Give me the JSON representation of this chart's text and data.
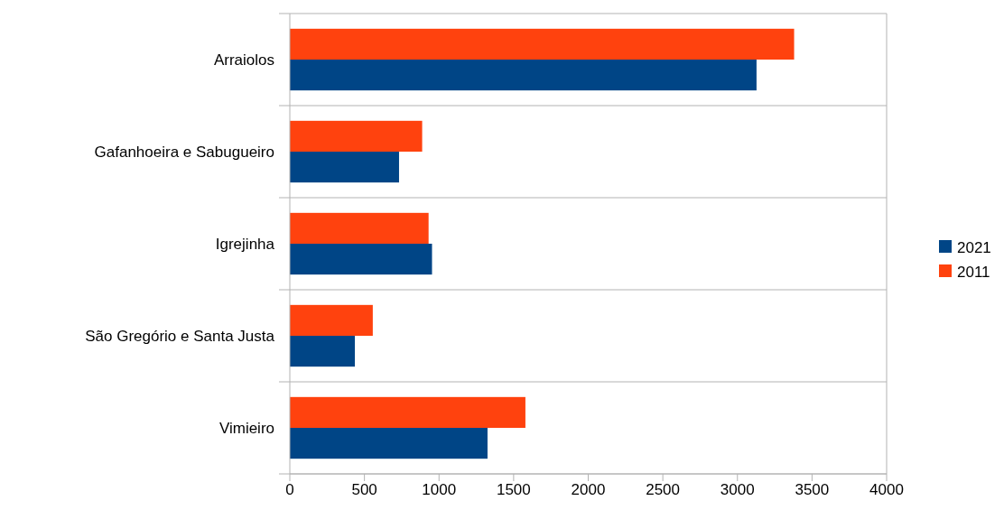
{
  "chart_data": {
    "type": "bar",
    "orientation": "horizontal",
    "categories": [
      "Arraiolos",
      "Gafanhoeira e Sabugueiro",
      "Igrejinha",
      "São Gregório e Santa Justa",
      "Vimieiro"
    ],
    "series": [
      {
        "name": "2021",
        "color": "#004586",
        "values": [
          3128,
          732,
          953,
          436,
          1325
        ]
      },
      {
        "name": "2011",
        "color": "#ff420e",
        "values": [
          3380,
          887,
          930,
          556,
          1579
        ]
      }
    ],
    "xlim": [
      0,
      4000
    ],
    "xticks": [
      0,
      500,
      1000,
      1500,
      2000,
      2500,
      3000,
      3500,
      4000
    ],
    "grid": "y",
    "legend": "right"
  }
}
